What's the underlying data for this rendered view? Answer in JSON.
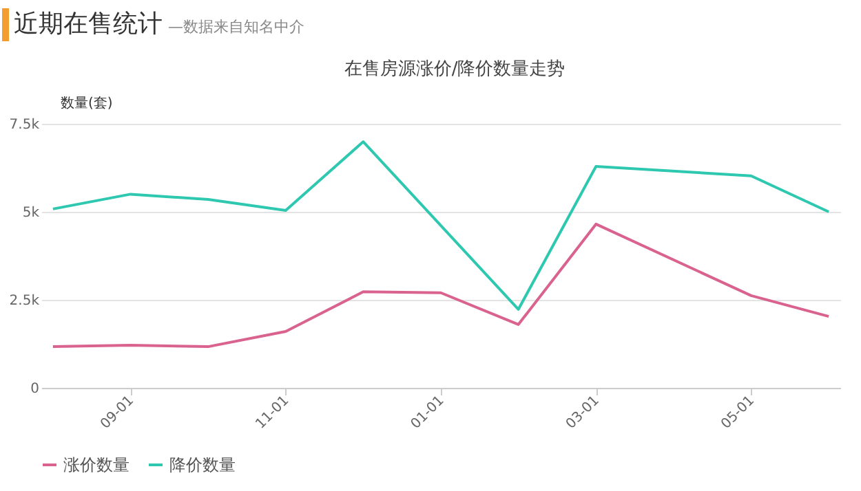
{
  "chart_data": {
    "type": "line",
    "title": "在售房源涨价/降价数量走势",
    "ylabel": "数量(套)",
    "annotations": [
      "近期在售统计",
      "—数据来自知名中介"
    ],
    "categories": [
      null,
      "09-01",
      null,
      "11-01",
      null,
      "01-01",
      null,
      "03-01",
      null,
      "05-01",
      null
    ],
    "series": [
      {
        "name": "涨价数量",
        "color": "#d9628f",
        "values": [
          1170,
          1210,
          1170,
          1600,
          2730,
          2700,
          1800,
          4650,
          null,
          2620,
          2030
        ]
      },
      {
        "name": "降价数量",
        "color": "#2ec8b0",
        "values": [
          5080,
          5500,
          5350,
          5040,
          6990,
          null,
          2230,
          6290,
          null,
          6020,
          5000
        ]
      }
    ],
    "ylim": [
      0,
      7500
    ],
    "yticks": [
      0,
      {
        "value": 2500,
        "label": "2.5k"
      },
      {
        "value": 5000,
        "label": "5k"
      },
      {
        "value": 7500,
        "label": "7.5k"
      }
    ],
    "grid": "y",
    "legend": "bottom",
    "marker": "none",
    "line_style": "solid"
  }
}
